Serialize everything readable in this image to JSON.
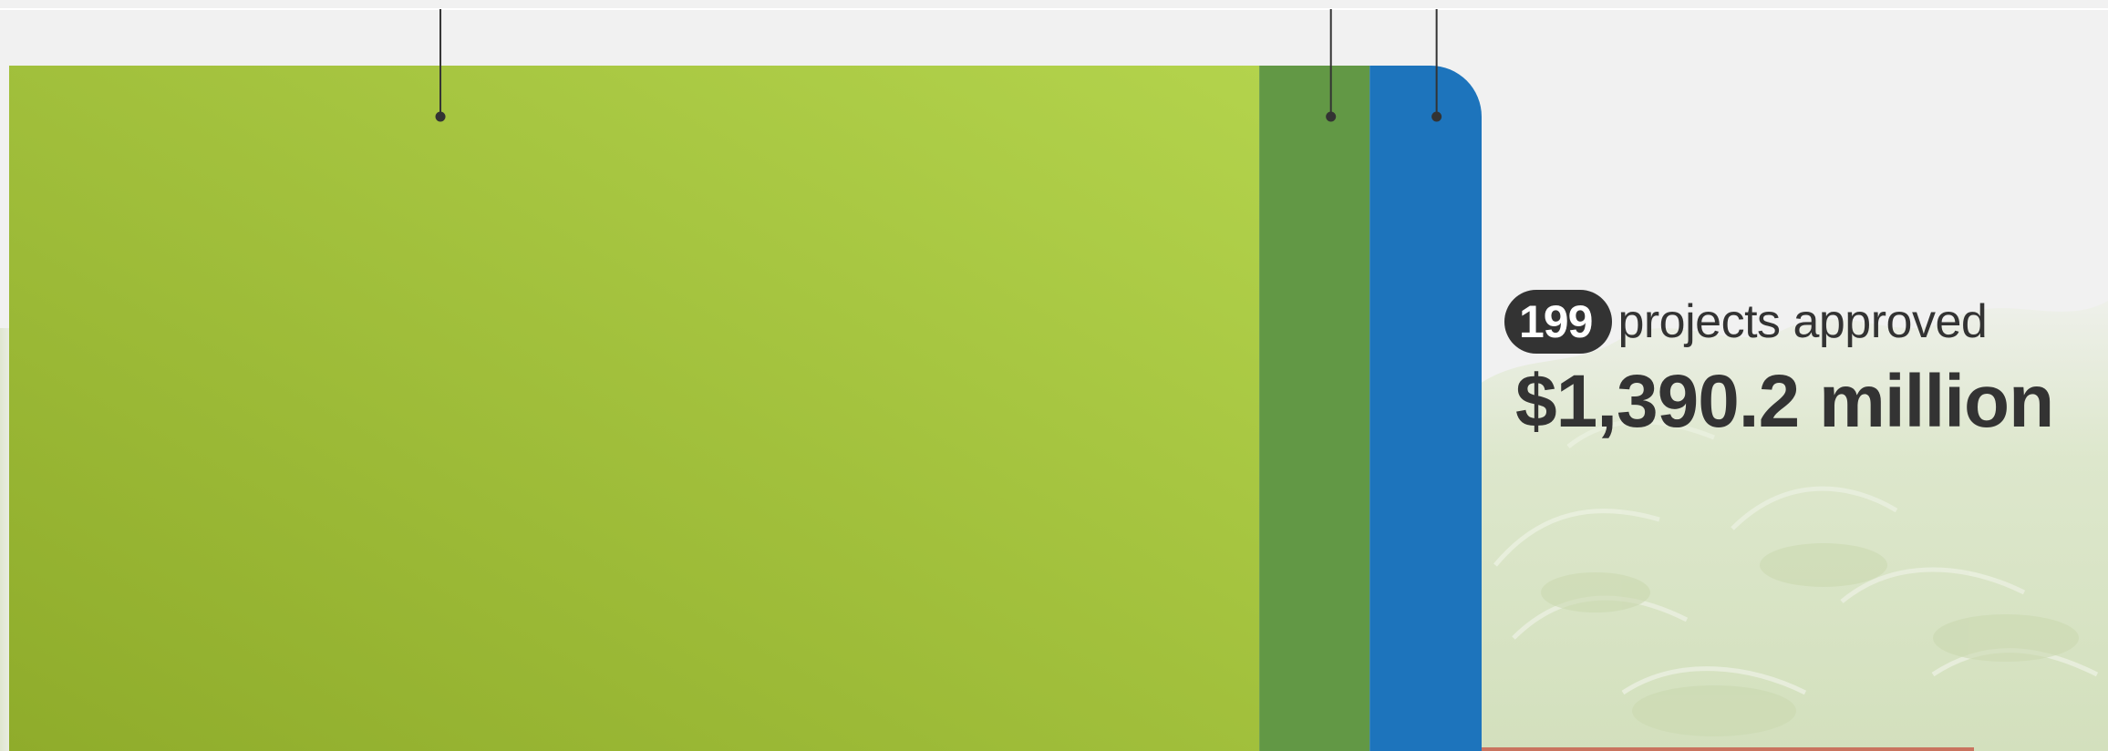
{
  "chart_data": {
    "type": "bar",
    "orientation": "horizontal-stacked",
    "series": [
      {
        "color": "#a6c43c",
        "share": 0.849
      },
      {
        "color": "#629845",
        "share": 0.075
      },
      {
        "color": "#1d74bc",
        "share": 0.076
      }
    ]
  },
  "summary": {
    "project_count": "199",
    "project_label": "projects approved",
    "total_amount": "$1,390.2 million"
  },
  "colors": {
    "text": "#333333",
    "background": "#f1f1f1",
    "leader_line": "#333333"
  }
}
